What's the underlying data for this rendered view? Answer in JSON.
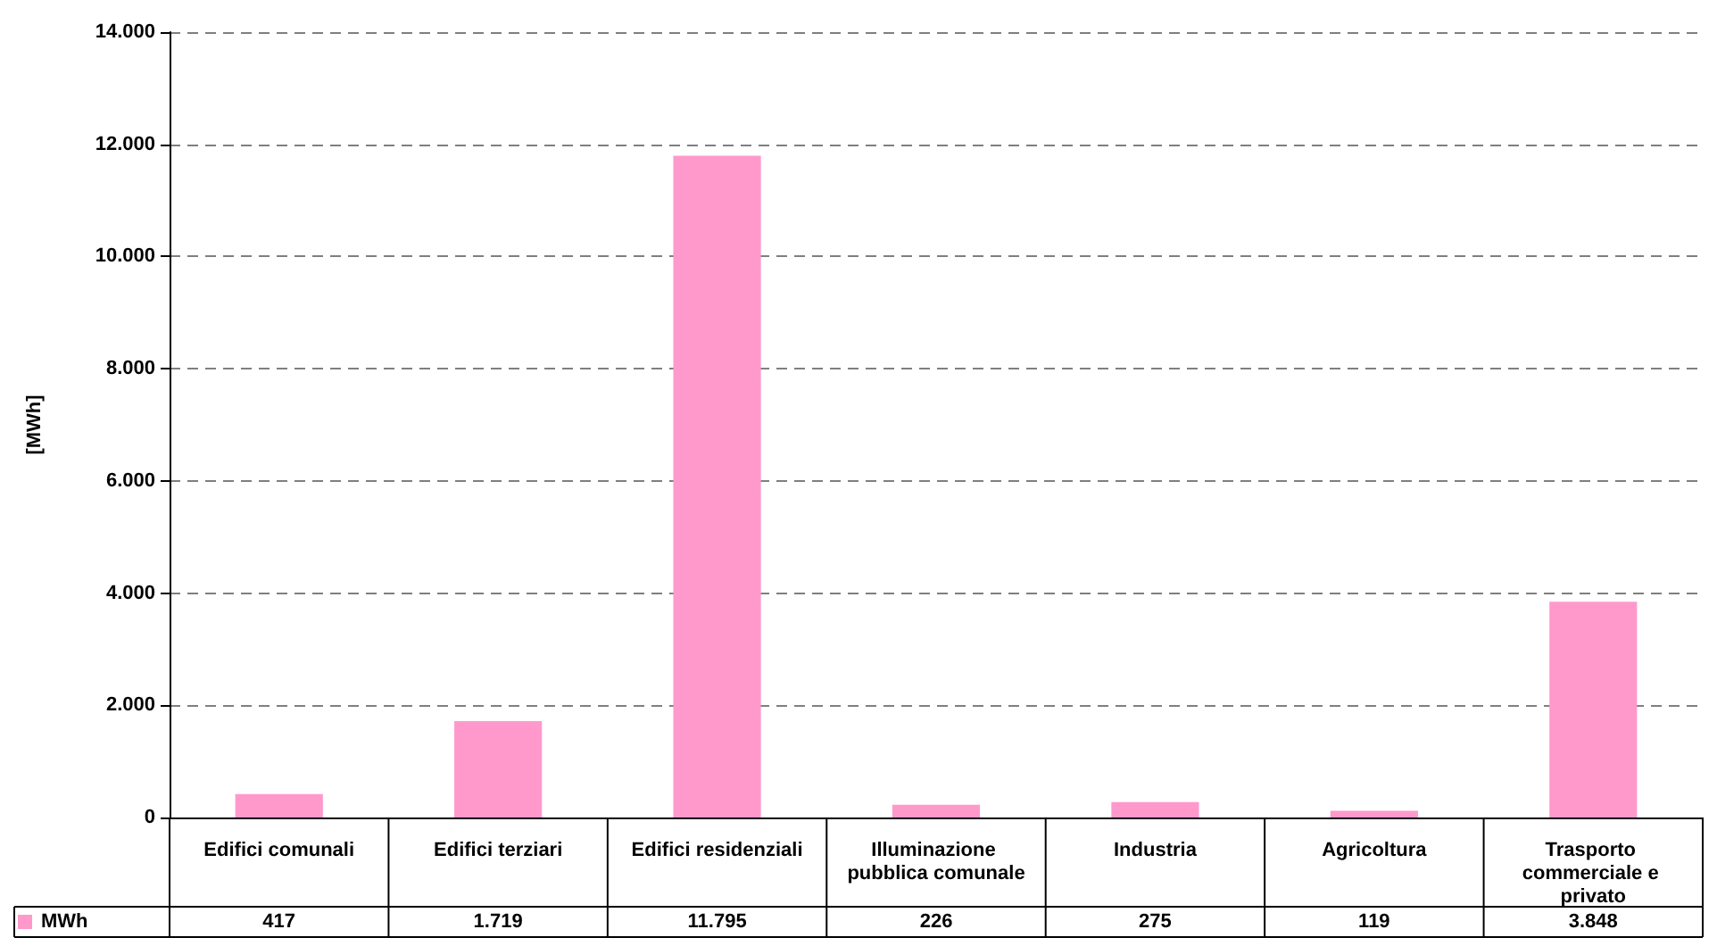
{
  "chart_data": {
    "type": "bar",
    "ylabel": "[MWh]",
    "categories": [
      "Edifici comunali",
      "Edifici terziari",
      "Edifici residenziali",
      "Illuminazione pubblica comunale",
      "Industria",
      "Agricoltura",
      "Trasporto commerciale e privato"
    ],
    "series": [
      {
        "name": "MWh",
        "color": "#ff99cc",
        "values": [
          417,
          1719,
          11795,
          226,
          275,
          119,
          3848
        ],
        "value_labels": [
          "417",
          "1.719",
          "11.795",
          "226",
          "275",
          "119",
          "3.848"
        ]
      }
    ],
    "ylim": [
      0,
      14000
    ],
    "yticks": [
      {
        "value": 0,
        "label": "0"
      },
      {
        "value": 2000,
        "label": "2.000"
      },
      {
        "value": 4000,
        "label": "4.000"
      },
      {
        "value": 6000,
        "label": "6.000"
      },
      {
        "value": 8000,
        "label": "8.000"
      },
      {
        "value": 10000,
        "label": "10.000"
      },
      {
        "value": 12000,
        "label": "12.000"
      },
      {
        "value": 14000,
        "label": "14.000"
      }
    ],
    "grid": "y",
    "legend": "bottom left"
  }
}
